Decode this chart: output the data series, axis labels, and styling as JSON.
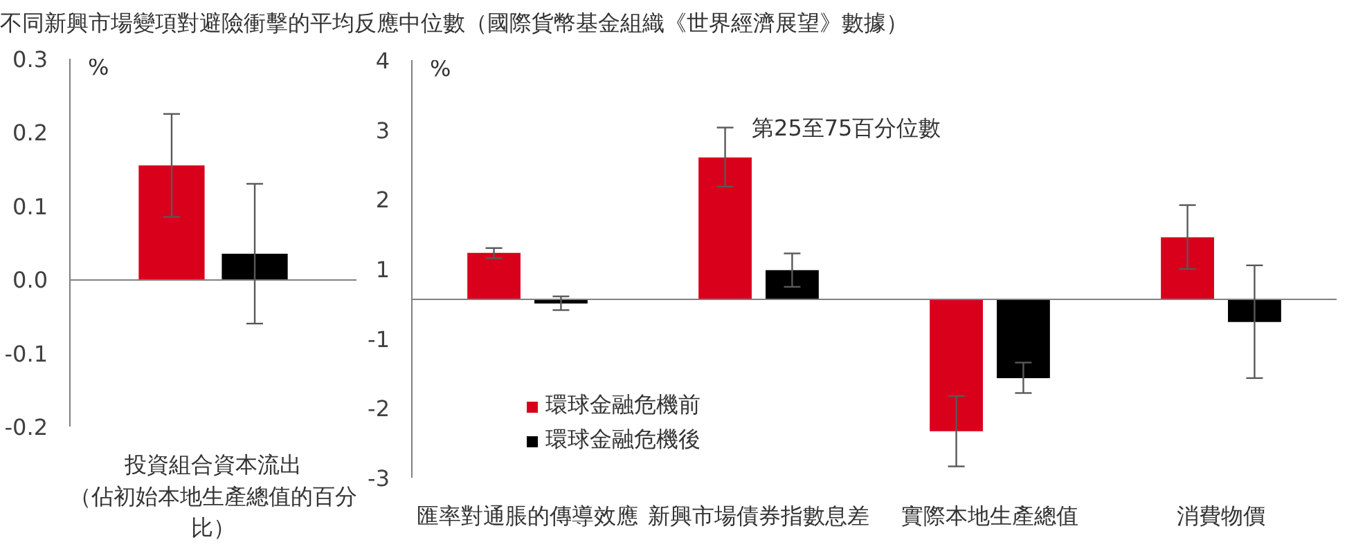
{
  "chart_data": [
    {
      "type": "bar",
      "title": "不同新興市場變項對避險衝擊的平均反應中位數（國際貨幣基金組織《世界經濟展望》數據）",
      "ylabel": "%",
      "categories": [
        "投資組合資本流出（佔初始本地生產總值的百分比）"
      ],
      "series": [
        {
          "color": "#d9001b",
          "values": [
            0.155
          ],
          "errors": [
            [
              0.085,
              0.225
            ]
          ]
        },
        {
          "color": "#000000",
          "values": [
            0.035
          ],
          "errors": [
            [
              -0.06,
              0.13
            ]
          ]
        }
      ],
      "ylim": [
        -0.2,
        0.3
      ],
      "yticks": [
        -0.2,
        -0.1,
        {
          "value": 0,
          "label": "0.0"
        },
        0.1,
        0.2,
        0.3
      ]
    },
    {
      "type": "bar",
      "ylabel": "%",
      "categories": [
        "匯率對通脹的傳導效應",
        "新興市場債券指數息差",
        "實際本地生產總值",
        "消費物價"
      ],
      "series": [
        {
          "name": "環球金融危機前",
          "color": "#d9001b",
          "values": [
            0.77,
            2.37,
            -2.22,
            1.03
          ],
          "errors": [
            [
              0.68,
              0.85
            ],
            [
              1.88,
              2.87
            ],
            [
              -2.81,
              -1.63
            ],
            [
              0.5,
              1.57
            ]
          ]
        },
        {
          "name": "環球金融危機後",
          "color": "#000000",
          "values": [
            -0.08,
            0.48,
            -1.33,
            -0.39
          ],
          "errors": [
            [
              -0.19,
              0.04
            ],
            [
              0.2,
              0.76
            ],
            [
              -1.58,
              -1.07
            ],
            [
              -1.33,
              0.56
            ]
          ]
        }
      ],
      "ylim": [
        -3,
        4
      ],
      "yticks": [
        -3,
        {
          "value": -1.83,
          "label": "-2"
        },
        {
          "value": -0.67,
          "label": "-1"
        },
        {
          "value": 0.5,
          "label": "1"
        },
        {
          "value": 1.67,
          "label": "2"
        },
        {
          "value": 2.83,
          "label": "3"
        },
        4
      ],
      "legend": "bottom left",
      "annotations": [
        "第25至75百分位數"
      ]
    }
  ]
}
